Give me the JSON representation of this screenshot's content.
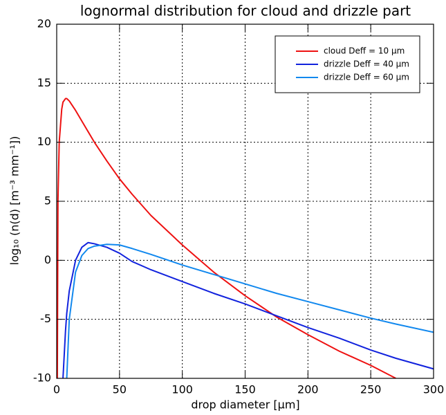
{
  "chart_data": {
    "type": "line",
    "title": "lognormal distribution for cloud and drizzle part",
    "x_label": "drop diameter [μm]",
    "y_label": "log₁₀ (n(d) [m⁻³ mm⁻¹])",
    "x": [
      0.5,
      1,
      2,
      4,
      5,
      7,
      8,
      10,
      15,
      20,
      25,
      30,
      40,
      50,
      60,
      75,
      100,
      125,
      150,
      175,
      200,
      225,
      250,
      270,
      300
    ],
    "series": [
      {
        "name": "cloud Deff = 10 μm",
        "color": "#ee1111",
        "values": [
          -10,
          5,
          10,
          12.8,
          13.4,
          13.7,
          13.7,
          13.5,
          12.7,
          11.8,
          10.9,
          10.0,
          8.4,
          6.9,
          5.6,
          3.8,
          1.3,
          -1.0,
          -3.0,
          -4.8,
          -6.3,
          -7.7,
          -8.9,
          -10,
          null
        ]
      },
      {
        "name": "drizzle Deff = 40 μm",
        "color": "#1122dd",
        "values": [
          null,
          null,
          null,
          null,
          -10,
          -6,
          -4.5,
          -2.6,
          0.0,
          1.1,
          1.5,
          1.4,
          1.1,
          0.6,
          -0.1,
          -0.8,
          -1.8,
          -2.8,
          -3.7,
          -4.7,
          -5.7,
          -6.6,
          -7.6,
          -8.3,
          -9.2
        ]
      },
      {
        "name": "drizzle Deff = 60 μm",
        "color": "#1188ee",
        "values": [
          null,
          null,
          null,
          null,
          null,
          null,
          -10,
          -5,
          -1,
          0.4,
          1.0,
          1.2,
          1.35,
          1.3,
          1.0,
          0.5,
          -0.4,
          -1.2,
          -2.0,
          -2.8,
          -3.5,
          -4.2,
          -4.9,
          -5.4,
          -6.1
        ]
      }
    ],
    "xlim": [
      0,
      300
    ],
    "xticks": [
      0,
      50,
      100,
      150,
      200,
      250,
      300
    ],
    "ylim": [
      -10,
      20
    ],
    "yticks": [
      -10,
      -5,
      0,
      5,
      10,
      15,
      20
    ],
    "grid": true,
    "legend": "upper right"
  }
}
